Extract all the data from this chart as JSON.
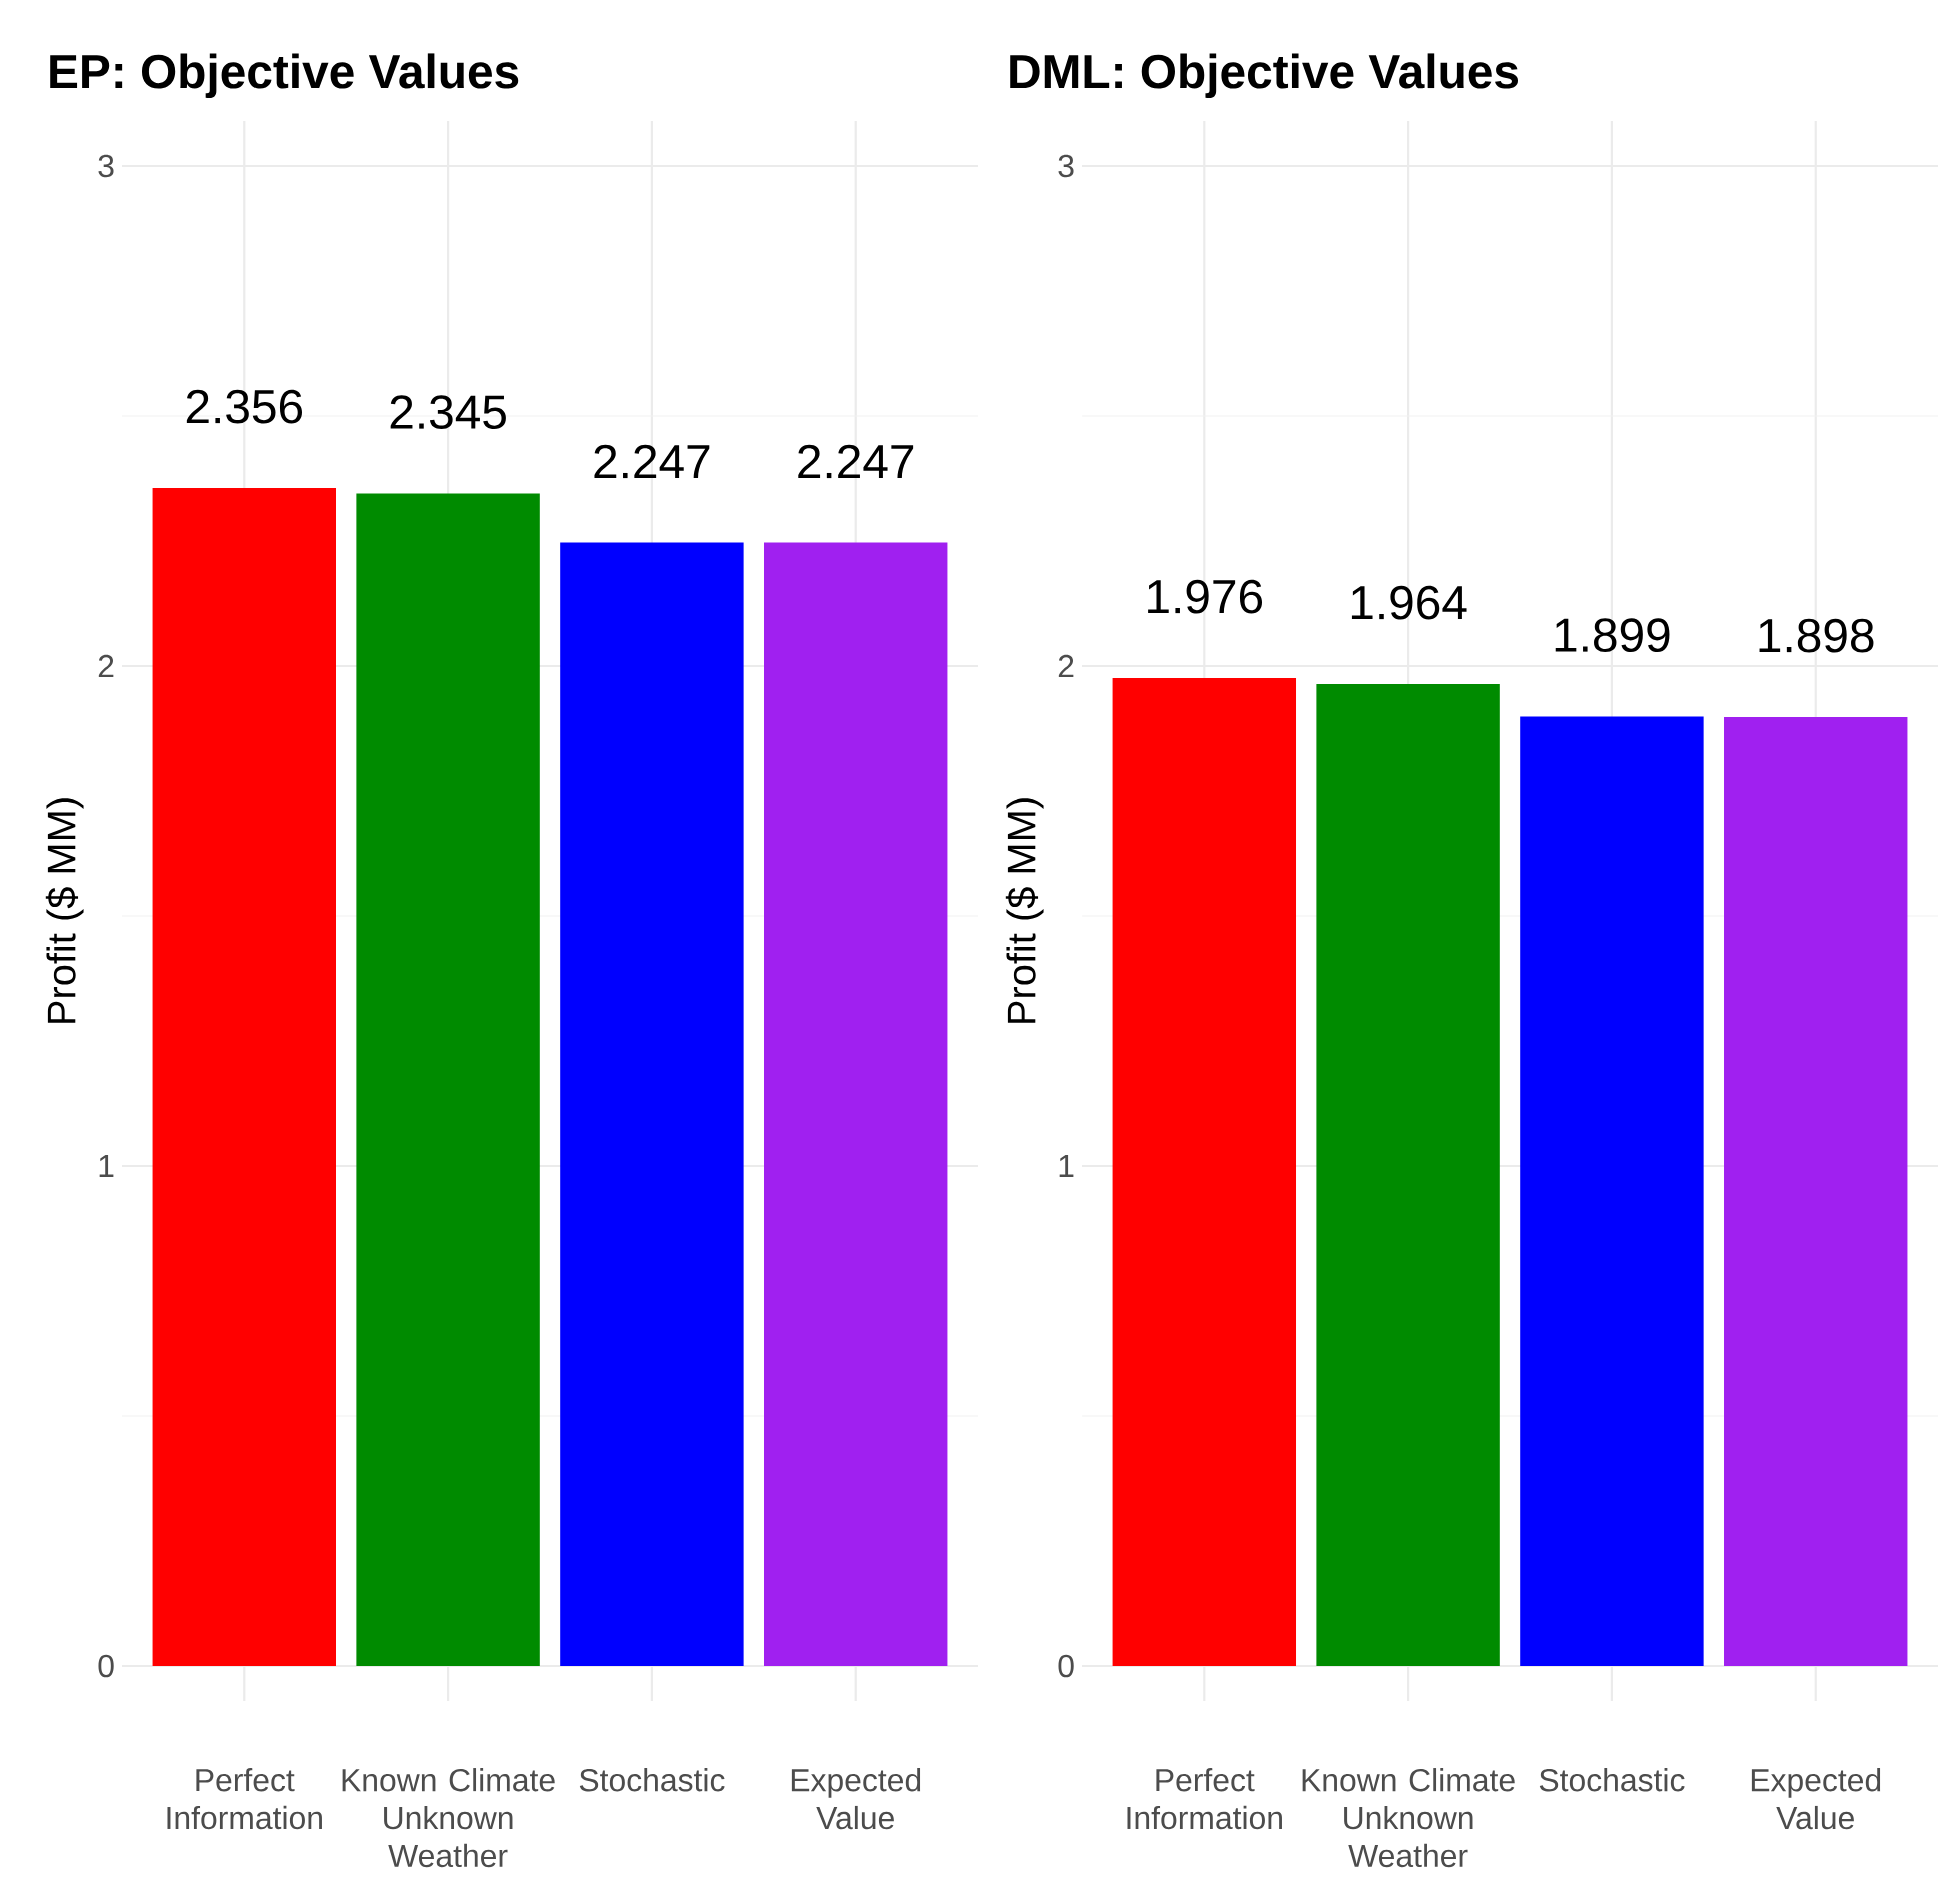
{
  "chart_data": [
    {
      "type": "bar",
      "title": "EP: Objective Values",
      "ylabel": "Profit ($ MM)",
      "categories": [
        "Perfect Information",
        "Known Climate Unknown Weather",
        "Stochastic",
        "Expected Value"
      ],
      "values": [
        2.356,
        2.345,
        2.247,
        2.247
      ],
      "colors": [
        "#ff0000",
        "#008b00",
        "#0000ff",
        "#a020f0"
      ],
      "ylim": [
        -0.07,
        3.09
      ],
      "yticks": [
        0,
        1,
        2,
        3
      ],
      "grid": true,
      "data_labels": true
    },
    {
      "type": "bar",
      "title": "DML: Objective Values",
      "ylabel": "Profit ($ MM)",
      "categories": [
        "Perfect Information",
        "Known Climate Unknown Weather",
        "Stochastic",
        "Expected Value"
      ],
      "values": [
        1.976,
        1.964,
        1.899,
        1.898
      ],
      "colors": [
        "#ff0000",
        "#008b00",
        "#0000ff",
        "#a020f0"
      ],
      "ylim": [
        -0.07,
        3.09
      ],
      "yticks": [
        0,
        1,
        2,
        3
      ],
      "grid": true,
      "data_labels": true
    }
  ]
}
